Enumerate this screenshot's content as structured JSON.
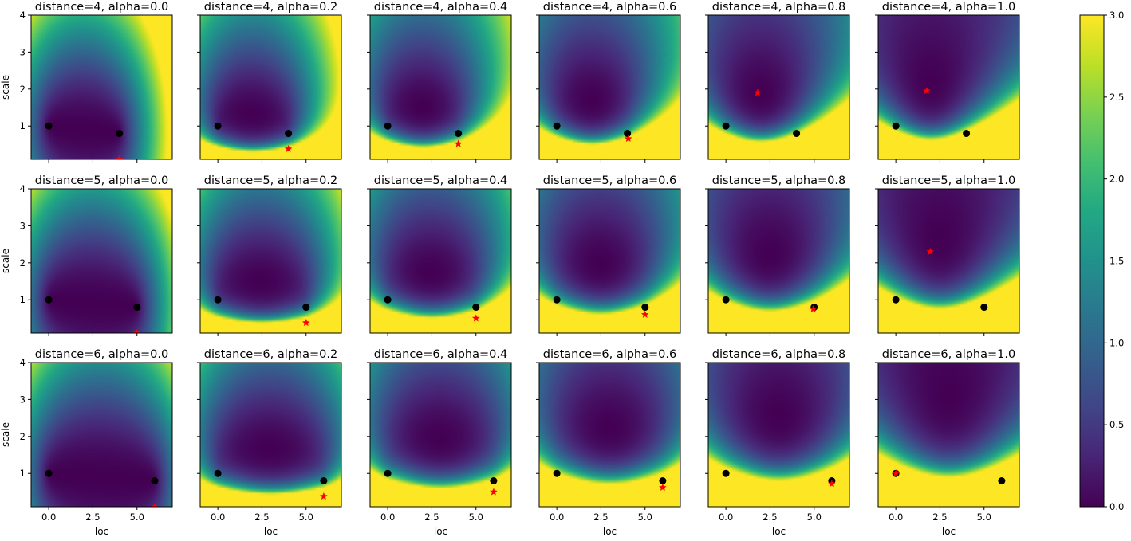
{
  "figure": {
    "xlabel": "loc",
    "ylabel": "scale",
    "xticks": [
      "0.0",
      "2.5",
      "5.0"
    ],
    "yticks": [
      "1",
      "2",
      "3",
      "4"
    ]
  },
  "chart_data": {
    "type": "heatmap",
    "colormap": "viridis",
    "xlim": [
      -1,
      7
    ],
    "ylim": [
      0.1,
      4
    ],
    "xtick_values": [
      0,
      2.5,
      5
    ],
    "ytick_values": [
      1,
      2,
      3,
      4
    ],
    "colorbar": {
      "range": [
        0,
        3
      ],
      "ticks": [
        "0.0",
        "0.5",
        "1.0",
        "1.5",
        "2.0",
        "2.5",
        "3.0"
      ],
      "tick_values": [
        0,
        0.5,
        1,
        1.5,
        2,
        2.5,
        3
      ]
    },
    "panels": [
      {
        "title": "distance=4, alpha=0.0",
        "distance": 4,
        "alpha": 0.0,
        "points": [
          [
            0,
            1
          ],
          [
            4,
            0.8
          ]
        ],
        "optimum": [
          4.0,
          0.1
        ]
      },
      {
        "title": "distance=4, alpha=0.2",
        "distance": 4,
        "alpha": 0.2,
        "points": [
          [
            0,
            1
          ],
          [
            4,
            0.8
          ]
        ],
        "optimum": [
          4.0,
          0.38
        ]
      },
      {
        "title": "distance=4, alpha=0.4",
        "distance": 4,
        "alpha": 0.4,
        "points": [
          [
            0,
            1
          ],
          [
            4,
            0.8
          ]
        ],
        "optimum": [
          4.0,
          0.52
        ]
      },
      {
        "title": "distance=4, alpha=0.6",
        "distance": 4,
        "alpha": 0.6,
        "points": [
          [
            0,
            1
          ],
          [
            4,
            0.8
          ]
        ],
        "optimum": [
          4.05,
          0.66
        ]
      },
      {
        "title": "distance=4, alpha=0.8",
        "distance": 4,
        "alpha": 0.8,
        "points": [
          [
            0,
            1
          ],
          [
            4,
            0.8
          ]
        ],
        "optimum": [
          1.8,
          1.9
        ]
      },
      {
        "title": "distance=4, alpha=1.0",
        "distance": 4,
        "alpha": 1.0,
        "points": [
          [
            0,
            1
          ],
          [
            4,
            0.8
          ]
        ],
        "optimum": [
          1.75,
          1.95
        ]
      },
      {
        "title": "distance=5, alpha=0.0",
        "distance": 5,
        "alpha": 0.0,
        "points": [
          [
            0,
            1
          ],
          [
            5,
            0.8
          ]
        ],
        "optimum": [
          5.0,
          0.1
        ]
      },
      {
        "title": "distance=5, alpha=0.2",
        "distance": 5,
        "alpha": 0.2,
        "points": [
          [
            0,
            1
          ],
          [
            5,
            0.8
          ]
        ],
        "optimum": [
          5.0,
          0.38
        ]
      },
      {
        "title": "distance=5, alpha=0.4",
        "distance": 5,
        "alpha": 0.4,
        "points": [
          [
            0,
            1
          ],
          [
            5,
            0.8
          ]
        ],
        "optimum": [
          5.0,
          0.5
        ]
      },
      {
        "title": "distance=5, alpha=0.6",
        "distance": 5,
        "alpha": 0.6,
        "points": [
          [
            0,
            1
          ],
          [
            5,
            0.8
          ]
        ],
        "optimum": [
          5.0,
          0.6
        ]
      },
      {
        "title": "distance=5, alpha=0.8",
        "distance": 5,
        "alpha": 0.8,
        "points": [
          [
            0,
            1
          ],
          [
            5,
            0.8
          ]
        ],
        "optimum": [
          4.95,
          0.75
        ]
      },
      {
        "title": "distance=5, alpha=1.0",
        "distance": 5,
        "alpha": 1.0,
        "points": [
          [
            0,
            1
          ],
          [
            5,
            0.8
          ]
        ],
        "optimum": [
          1.95,
          2.3
        ]
      },
      {
        "title": "distance=6, alpha=0.0",
        "distance": 6,
        "alpha": 0.0,
        "points": [
          [
            0,
            1
          ],
          [
            6,
            0.8
          ]
        ],
        "optimum": [
          6.0,
          0.1
        ]
      },
      {
        "title": "distance=6, alpha=0.2",
        "distance": 6,
        "alpha": 0.2,
        "points": [
          [
            0,
            1
          ],
          [
            6,
            0.8
          ]
        ],
        "optimum": [
          6.0,
          0.38
        ]
      },
      {
        "title": "distance=6, alpha=0.4",
        "distance": 6,
        "alpha": 0.4,
        "points": [
          [
            0,
            1
          ],
          [
            6,
            0.8
          ]
        ],
        "optimum": [
          6.0,
          0.5
        ]
      },
      {
        "title": "distance=6, alpha=0.6",
        "distance": 6,
        "alpha": 0.6,
        "points": [
          [
            0,
            1
          ],
          [
            6,
            0.8
          ]
        ],
        "optimum": [
          6.0,
          0.62
        ]
      },
      {
        "title": "distance=6, alpha=0.8",
        "distance": 6,
        "alpha": 0.8,
        "points": [
          [
            0,
            1
          ],
          [
            6,
            0.8
          ]
        ],
        "optimum": [
          6.0,
          0.72
        ]
      },
      {
        "title": "distance=6, alpha=1.0",
        "distance": 6,
        "alpha": 1.0,
        "points": [
          [
            0,
            1
          ],
          [
            6,
            0.8
          ]
        ],
        "optimum": [
          0.0,
          1.0
        ]
      }
    ]
  },
  "colors": {
    "points": "#000000",
    "optimum": "#ff0000",
    "axes": "#000000"
  }
}
